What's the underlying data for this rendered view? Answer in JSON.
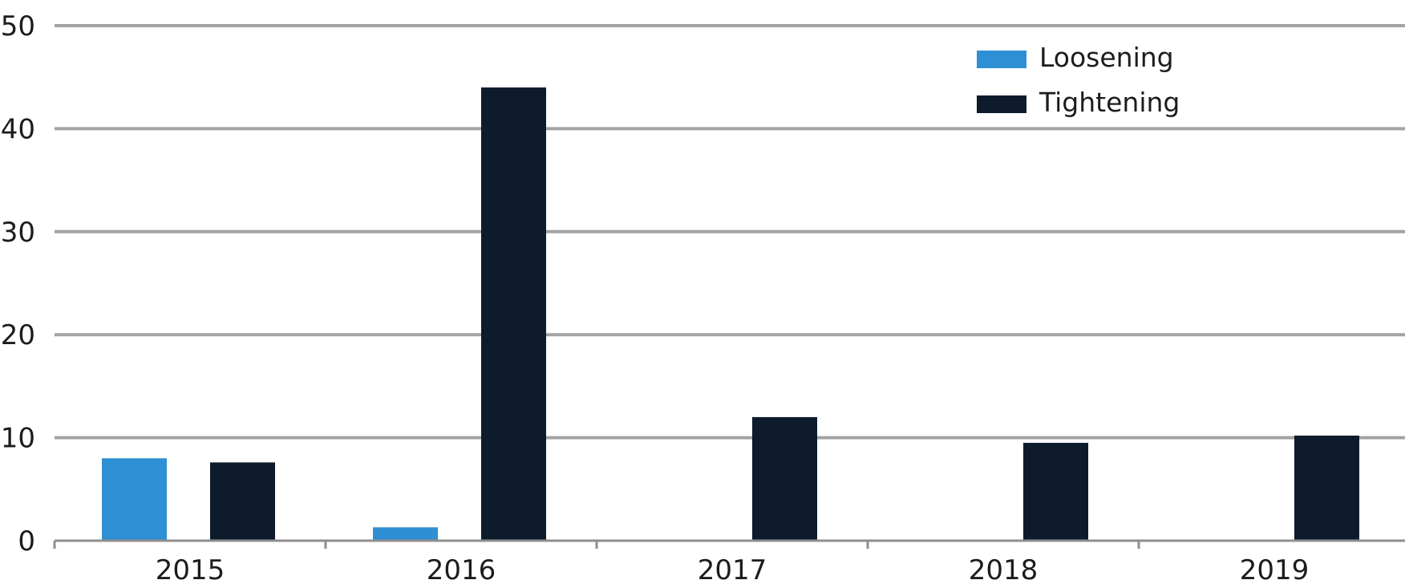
{
  "chart_data": {
    "type": "bar",
    "categories": [
      "2015",
      "2016",
      "2017",
      "2018",
      "2019"
    ],
    "series": [
      {
        "name": "Loosening",
        "values": [
          8,
          1.3,
          0,
          0,
          0
        ],
        "color": "#2f8fd4"
      },
      {
        "name": "Tightening",
        "values": [
          7.6,
          44,
          12,
          9.5,
          10.2
        ],
        "color": "#0d1b2c"
      }
    ],
    "ylim": [
      0,
      50
    ],
    "yticks": [
      0,
      10,
      20,
      30,
      40,
      50
    ],
    "grid": true,
    "legend_position": "top-right",
    "title": "",
    "xlabel": "",
    "ylabel": ""
  }
}
